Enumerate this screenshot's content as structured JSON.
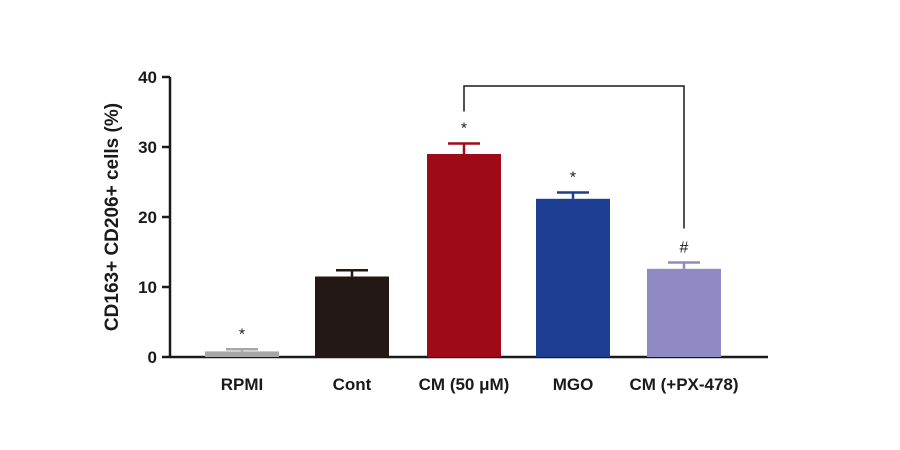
{
  "chart_data": {
    "type": "bar",
    "ylabel": "CD163+ CD206+ cells (%)",
    "ylim": [
      0,
      40
    ],
    "yticks": [
      "0",
      "10",
      "20",
      "30",
      "40"
    ],
    "categories": [
      "RPMI",
      "Cont",
      "CM (50 μM)",
      "MGO",
      "CM (+PX-478)"
    ],
    "values": [
      0.8,
      11.5,
      29.0,
      22.6,
      12.6
    ],
    "errors": [
      0.3,
      0.9,
      1.5,
      0.9,
      0.9
    ],
    "colors": [
      "#a6a6a6",
      "#231815",
      "#9e0a17",
      "#1c3f94",
      "#8f8ac2"
    ],
    "significance": [
      "*",
      "",
      "*",
      "*",
      "#"
    ],
    "comparison_bracket": {
      "from": "CM (50 μM)",
      "to": "CM (+PX-478)"
    }
  }
}
